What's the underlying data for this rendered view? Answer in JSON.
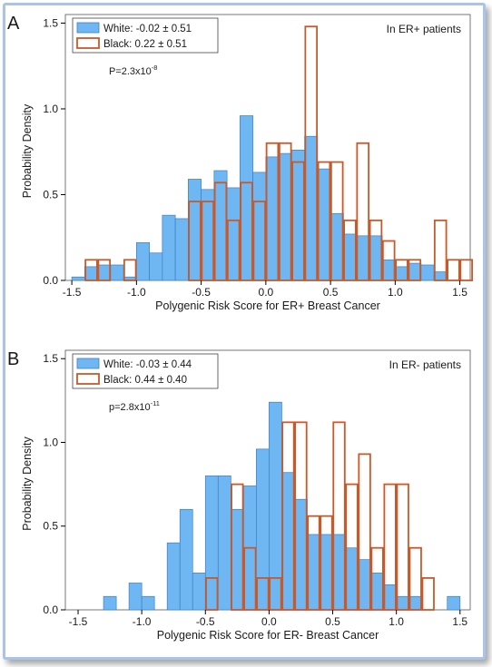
{
  "colors": {
    "white_fill": "#6fb7f3",
    "white_stroke": "#3f7fc0",
    "black_stroke": "#c85a2a",
    "axis": "#000000",
    "frame": "#a9c4e8"
  },
  "chart_data": [
    {
      "type": "histogram",
      "panel_letter": "A",
      "subgroup_text": "In ER+ patients",
      "p_value": {
        "prefix": "P=2.3x10",
        "exponent": "-8"
      },
      "xlabel": "Polygenic Risk Score for ER+ Breast Cancer",
      "ylabel": "Probability Density",
      "xlim": [
        -1.55,
        1.58
      ],
      "ylim": [
        0,
        1.55
      ],
      "xticks": [
        "-1.5",
        "-1.0",
        "-0.5",
        "0.0",
        "0.5",
        "1.0",
        "1.5"
      ],
      "yticks": [
        "0.0",
        "0.5",
        "1.0",
        "1.5"
      ],
      "bin_width": 0.1,
      "series": [
        {
          "name": "White",
          "legend": "White:  -0.02 ± 0.51",
          "style": "filled",
          "bins": [
            {
              "x": -1.45,
              "y": 0.02
            },
            {
              "x": -1.35,
              "y": 0.08
            },
            {
              "x": -1.25,
              "y": 0.09
            },
            {
              "x": -1.15,
              "y": 0.09
            },
            {
              "x": -1.05,
              "y": 0.02
            },
            {
              "x": -0.95,
              "y": 0.22
            },
            {
              "x": -0.85,
              "y": 0.16
            },
            {
              "x": -0.75,
              "y": 0.38
            },
            {
              "x": -0.65,
              "y": 0.36
            },
            {
              "x": -0.55,
              "y": 0.59
            },
            {
              "x": -0.45,
              "y": 0.53
            },
            {
              "x": -0.35,
              "y": 0.64
            },
            {
              "x": -0.25,
              "y": 0.54
            },
            {
              "x": -0.15,
              "y": 0.96
            },
            {
              "x": -0.05,
              "y": 0.63
            },
            {
              "x": 0.05,
              "y": 0.72
            },
            {
              "x": 0.15,
              "y": 0.74
            },
            {
              "x": 0.25,
              "y": 0.76
            },
            {
              "x": 0.35,
              "y": 0.84
            },
            {
              "x": 0.45,
              "y": 0.65
            },
            {
              "x": 0.55,
              "y": 0.39
            },
            {
              "x": 0.65,
              "y": 0.27
            },
            {
              "x": 0.75,
              "y": 0.26
            },
            {
              "x": 0.85,
              "y": 0.26
            },
            {
              "x": 0.95,
              "y": 0.12
            },
            {
              "x": 1.05,
              "y": 0.08
            },
            {
              "x": 1.15,
              "y": 0.1
            },
            {
              "x": 1.25,
              "y": 0.09
            },
            {
              "x": 1.35,
              "y": 0.05
            }
          ]
        },
        {
          "name": "Black",
          "legend": "Black:  0.22 ± 0.51",
          "style": "outline",
          "bins": [
            {
              "x": -1.35,
              "y": 0.12
            },
            {
              "x": -1.25,
              "y": 0.12
            },
            {
              "x": -1.05,
              "y": 0.12
            },
            {
              "x": -0.55,
              "y": 0.46
            },
            {
              "x": -0.45,
              "y": 0.46
            },
            {
              "x": -0.35,
              "y": 0.57
            },
            {
              "x": -0.25,
              "y": 0.35
            },
            {
              "x": -0.15,
              "y": 0.57
            },
            {
              "x": -0.05,
              "y": 0.46
            },
            {
              "x": 0.05,
              "y": 0.8
            },
            {
              "x": 0.15,
              "y": 0.8
            },
            {
              "x": 0.25,
              "y": 0.69
            },
            {
              "x": 0.35,
              "y": 1.48
            },
            {
              "x": 0.45,
              "y": 0.69
            },
            {
              "x": 0.55,
              "y": 0.69
            },
            {
              "x": 0.65,
              "y": 0.35
            },
            {
              "x": 0.75,
              "y": 0.8
            },
            {
              "x": 0.85,
              "y": 0.35
            },
            {
              "x": 0.95,
              "y": 0.23
            },
            {
              "x": 1.05,
              "y": 0.12
            },
            {
              "x": 1.15,
              "y": 0.12
            },
            {
              "x": 1.35,
              "y": 0.35
            },
            {
              "x": 1.45,
              "y": 0.12
            },
            {
              "x": 1.55,
              "y": 0.12
            }
          ]
        }
      ]
    },
    {
      "type": "histogram",
      "panel_letter": "B",
      "subgroup_text": "In ER- patients",
      "p_value": {
        "prefix": "p=2.8x10",
        "exponent": "-11"
      },
      "xlabel": "Polygenic Risk Score for ER- Breast Cancer",
      "ylabel": "Probability Density",
      "xlim": [
        -1.6,
        1.58
      ],
      "ylim": [
        0,
        1.55
      ],
      "xticks": [
        "-1.5",
        "-1.0",
        "-0.5",
        "0.0",
        "0.5",
        "1.0",
        "1.5"
      ],
      "yticks": [
        "0.0",
        "0.5",
        "1.0",
        "1.5"
      ],
      "bin_width": 0.1,
      "series": [
        {
          "name": "White",
          "legend": "White:  -0.03 ± 0.44",
          "style": "filled",
          "bins": [
            {
              "x": -1.25,
              "y": 0.08
            },
            {
              "x": -1.05,
              "y": 0.16
            },
            {
              "x": -0.95,
              "y": 0.08
            },
            {
              "x": -0.75,
              "y": 0.4
            },
            {
              "x": -0.65,
              "y": 0.6
            },
            {
              "x": -0.55,
              "y": 0.22
            },
            {
              "x": -0.45,
              "y": 0.8
            },
            {
              "x": -0.35,
              "y": 0.8
            },
            {
              "x": -0.25,
              "y": 0.6
            },
            {
              "x": -0.15,
              "y": 0.74
            },
            {
              "x": -0.05,
              "y": 0.96
            },
            {
              "x": 0.05,
              "y": 1.24
            },
            {
              "x": 0.15,
              "y": 0.82
            },
            {
              "x": 0.25,
              "y": 0.66
            },
            {
              "x": 0.35,
              "y": 0.45
            },
            {
              "x": 0.45,
              "y": 0.45
            },
            {
              "x": 0.55,
              "y": 0.45
            },
            {
              "x": 0.65,
              "y": 0.37
            },
            {
              "x": 0.75,
              "y": 0.3
            },
            {
              "x": 0.85,
              "y": 0.22
            },
            {
              "x": 0.95,
              "y": 0.15
            },
            {
              "x": 1.05,
              "y": 0.08
            },
            {
              "x": 1.15,
              "y": 0.08
            },
            {
              "x": 1.45,
              "y": 0.08
            }
          ]
        },
        {
          "name": "Black",
          "legend": "Black:  0.44 ± 0.40",
          "style": "outline",
          "bins": [
            {
              "x": -0.45,
              "y": 0.19
            },
            {
              "x": -0.25,
              "y": 0.75
            },
            {
              "x": -0.15,
              "y": 0.37
            },
            {
              "x": -0.05,
              "y": 0.19
            },
            {
              "x": 0.05,
              "y": 0.19
            },
            {
              "x": 0.15,
              "y": 1.12
            },
            {
              "x": 0.25,
              "y": 1.12
            },
            {
              "x": 0.35,
              "y": 0.56
            },
            {
              "x": 0.45,
              "y": 0.56
            },
            {
              "x": 0.55,
              "y": 1.12
            },
            {
              "x": 0.65,
              "y": 0.75
            },
            {
              "x": 0.75,
              "y": 0.93
            },
            {
              "x": 0.85,
              "y": 0.37
            },
            {
              "x": 0.95,
              "y": 0.75
            },
            {
              "x": 1.05,
              "y": 0.75
            },
            {
              "x": 1.15,
              "y": 0.37
            },
            {
              "x": 1.25,
              "y": 0.19
            }
          ]
        }
      ]
    }
  ]
}
